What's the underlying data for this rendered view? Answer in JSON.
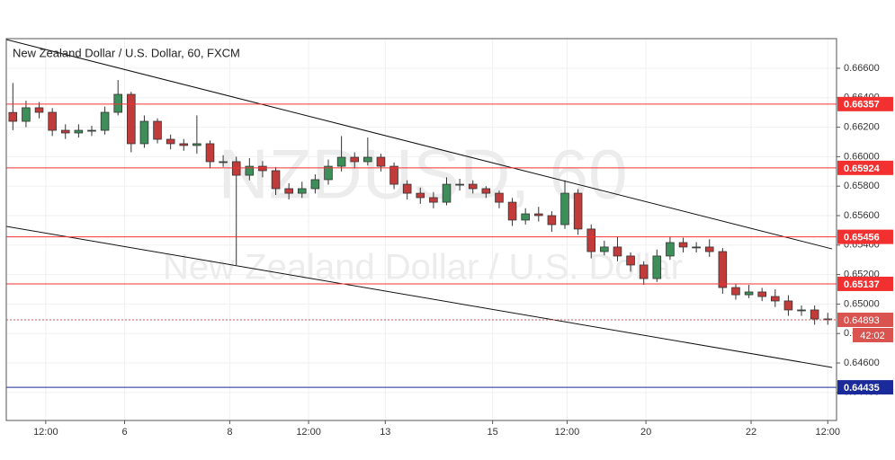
{
  "chart_data": {
    "type": "candlestick",
    "title": "New Zealand Dollar / U.S. Dollar, 60, FXCM",
    "watermark": "NZDUSD, 60",
    "watermark_subtitle": "New Zealand Dollar / U.S. Dollar",
    "up_color": "#3d8f5a",
    "down_color": "#c23b3b",
    "grid": true,
    "xlim": [
      -3,
      376
    ],
    "ylim": [
      0.6421,
      0.66801
    ],
    "xticks": [
      {
        "value": 15,
        "label": "12:00"
      },
      {
        "value": 51,
        "label": "6"
      },
      {
        "value": 99,
        "label": "8"
      },
      {
        "value": 135,
        "label": "12:00"
      },
      {
        "value": 170,
        "label": "13"
      },
      {
        "value": 219,
        "label": "15"
      },
      {
        "value": 253,
        "label": "12:00"
      },
      {
        "value": 289,
        "label": "20"
      },
      {
        "value": 337,
        "label": "22"
      },
      {
        "value": 372,
        "label": "12:00"
      }
    ],
    "yticks": [
      {
        "value": 0.666,
        "label": "0.66600"
      },
      {
        "value": 0.664,
        "label": "0.66400"
      },
      {
        "value": 0.662,
        "label": "0.66200"
      },
      {
        "value": 0.66,
        "label": "0.66000"
      },
      {
        "value": 0.658,
        "label": "0.65800"
      },
      {
        "value": 0.656,
        "label": "0.65600"
      },
      {
        "value": 0.654,
        "label": "0.65400"
      },
      {
        "value": 0.652,
        "label": "0.65200"
      },
      {
        "value": 0.65,
        "label": "0.65000"
      },
      {
        "value": 0.648,
        "label": "0.64800"
      },
      {
        "value": 0.646,
        "label": "0.64600"
      },
      {
        "value": 0.644,
        "label": "0.64400"
      }
    ],
    "x": [
      0,
      6,
      12,
      18,
      24,
      30,
      36,
      42,
      48,
      54,
      60,
      66,
      72,
      78,
      84,
      90,
      96,
      102,
      108,
      114,
      120,
      126,
      132,
      138,
      144,
      150,
      156,
      162,
      168,
      174,
      180,
      186,
      192,
      198,
      204,
      210,
      216,
      222,
      228,
      234,
      240,
      246,
      252,
      258,
      264,
      270,
      276,
      282,
      288,
      294,
      300,
      306,
      312,
      318,
      324,
      330,
      336,
      342,
      348,
      354,
      360,
      366,
      372
    ],
    "open": [
      0.663,
      0.6624,
      0.66332,
      0.66301,
      0.66179,
      0.66161,
      0.66179,
      0.66179,
      0.66301,
      0.66423,
      0.66088,
      0.6624,
      0.66118,
      0.66088,
      0.66076,
      0.66088,
      0.65966,
      0.65966,
      0.65874,
      0.65935,
      0.65905,
      0.65783,
      0.65752,
      0.65783,
      0.65844,
      0.65935,
      0.65996,
      0.65966,
      0.65996,
      0.65935,
      0.65813,
      0.65752,
      0.65722,
      0.65691,
      0.65813,
      0.65813,
      0.65783,
      0.65752,
      0.65691,
      0.6557,
      0.65612,
      0.656,
      0.65539,
      0.65752,
      0.65509,
      0.65356,
      0.65387,
      0.65326,
      0.65265,
      0.65173,
      0.65326,
      0.65417,
      0.65387,
      0.65387,
      0.65356,
      0.65112,
      0.65063,
      0.65082,
      0.65051,
      0.65021,
      0.6496,
      0.6496,
      0.64899
    ],
    "high": [
      0.665,
      0.6638,
      0.6637,
      0.6633,
      0.6622,
      0.6622,
      0.6621,
      0.6634,
      0.6652,
      0.6644,
      0.6628,
      0.6626,
      0.6615,
      0.6612,
      0.6628,
      0.6611,
      0.6601,
      0.66,
      0.6599,
      0.6597,
      0.6593,
      0.6582,
      0.6583,
      0.6588,
      0.6598,
      0.6614,
      0.6603,
      0.6613,
      0.6602,
      0.6596,
      0.6584,
      0.6579,
      0.6576,
      0.6586,
      0.6585,
      0.6584,
      0.658,
      0.6577,
      0.6572,
      0.6565,
      0.6566,
      0.6563,
      0.6584,
      0.6578,
      0.6554,
      0.6543,
      0.6546,
      0.6535,
      0.6529,
      0.6537,
      0.6546,
      0.6545,
      0.6542,
      0.6544,
      0.6538,
      0.6514,
      0.6513,
      0.6511,
      0.651,
      0.6506,
      0.6499,
      0.6499,
      0.6494
    ],
    "low": [
      0.6618,
      0.662,
      0.6626,
      0.6614,
      0.6612,
      0.6613,
      0.6614,
      0.6615,
      0.6628,
      0.6603,
      0.6606,
      0.6609,
      0.6605,
      0.6604,
      0.6602,
      0.6592,
      0.6593,
      0.65265,
      0.6584,
      0.6586,
      0.6574,
      0.6571,
      0.6572,
      0.6575,
      0.6581,
      0.659,
      0.6592,
      0.6594,
      0.659,
      0.6578,
      0.6571,
      0.6568,
      0.6565,
      0.6567,
      0.6577,
      0.6575,
      0.6572,
      0.6565,
      0.6553,
      0.6554,
      0.6556,
      0.6549,
      0.6551,
      0.6547,
      0.6531,
      0.6533,
      0.6529,
      0.6522,
      0.6513,
      0.6515,
      0.653,
      0.6535,
      0.6535,
      0.6532,
      0.6507,
      0.6503,
      0.6504,
      0.6502,
      0.6498,
      0.6492,
      0.6492,
      0.6486,
      0.6486
    ],
    "close": [
      0.6624,
      0.66332,
      0.66301,
      0.66179,
      0.66161,
      0.66179,
      0.66179,
      0.66301,
      0.66423,
      0.66088,
      0.6624,
      0.66118,
      0.66088,
      0.66076,
      0.66088,
      0.65966,
      0.65966,
      0.65874,
      0.65935,
      0.65905,
      0.65783,
      0.65752,
      0.65783,
      0.65844,
      0.65935,
      0.65996,
      0.65966,
      0.65996,
      0.65935,
      0.65813,
      0.65752,
      0.65722,
      0.65691,
      0.65813,
      0.65813,
      0.65783,
      0.65752,
      0.65691,
      0.6557,
      0.65612,
      0.656,
      0.65539,
      0.65752,
      0.65509,
      0.65356,
      0.65387,
      0.65326,
      0.65265,
      0.65173,
      0.65326,
      0.65417,
      0.65387,
      0.65387,
      0.65356,
      0.65112,
      0.65063,
      0.65082,
      0.65051,
      0.65021,
      0.6496,
      0.6496,
      0.64899,
      0.64893
    ],
    "levels": [
      {
        "value": 0.66357,
        "label": "0.66357",
        "color": "#f23030"
      },
      {
        "value": 0.65924,
        "label": "0.65924",
        "color": "#f23030"
      },
      {
        "value": 0.65456,
        "label": "0.65456",
        "color": "#f23030"
      },
      {
        "value": 0.65137,
        "label": "0.65137",
        "color": "#f23030"
      },
      {
        "value": 0.64435,
        "label": "0.64435",
        "color": "#1a2a9a"
      }
    ],
    "trendlines": [
      {
        "x": [
          -3,
          374
        ],
        "y": [
          0.66795,
          0.65374
        ]
      },
      {
        "x": [
          -3,
          374
        ],
        "y": [
          0.65527,
          0.6457
        ]
      }
    ],
    "current_price": {
      "value": 0.64893,
      "label": "0.64893",
      "countdown": "42:02",
      "color": "#d9534f"
    }
  }
}
